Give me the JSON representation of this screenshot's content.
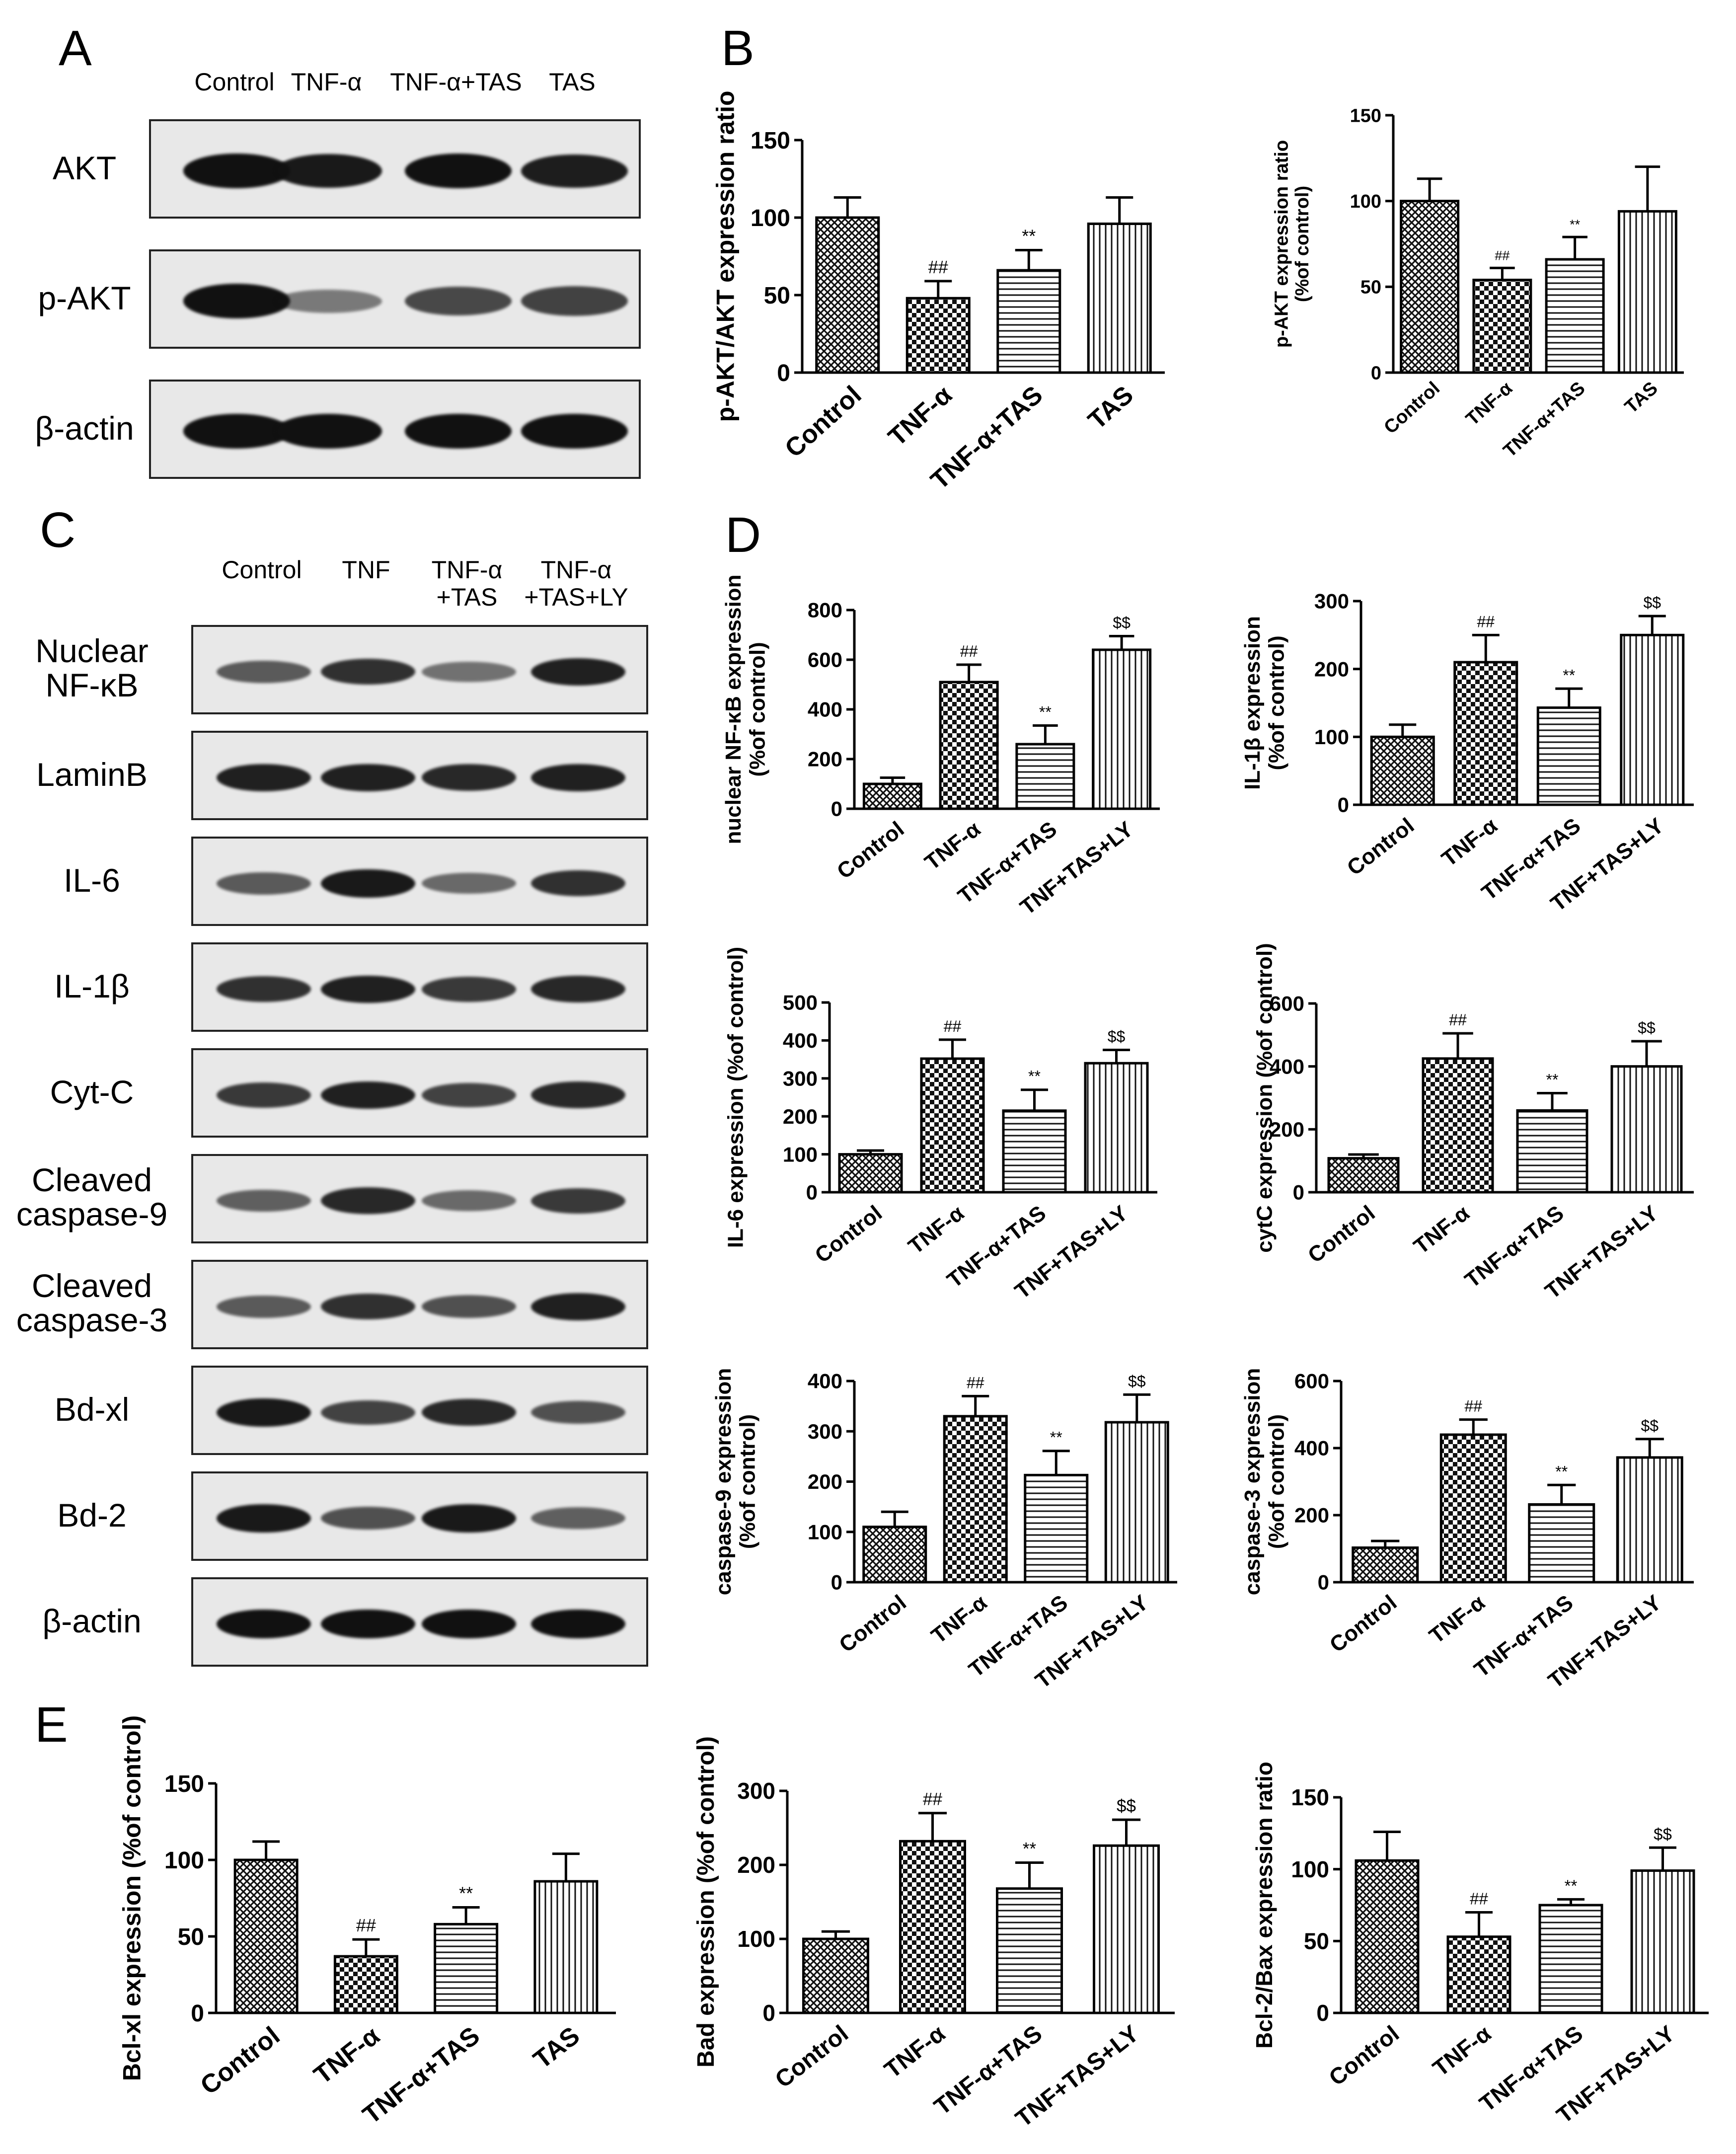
{
  "panels": {
    "A": {
      "letter": "A",
      "lanes": [
        "Control",
        "TNF-α",
        "TNF-α+TAS",
        "TAS"
      ],
      "blots": [
        {
          "label": "AKT",
          "intensity": [
            1.0,
            0.95,
            1.0,
            0.92
          ]
        },
        {
          "label": "p-AKT",
          "intensity": [
            1.0,
            0.35,
            0.65,
            0.7
          ]
        },
        {
          "label": "β-actin",
          "intensity": [
            1.0,
            1.0,
            1.0,
            1.0
          ]
        }
      ]
    },
    "B": {
      "letter": "B"
    },
    "C": {
      "letter": "C",
      "lanes": [
        "Control",
        "TNF",
        "TNF-α\n+TAS",
        "TNF-α\n+TAS+LY"
      ],
      "blots": [
        {
          "label": "Nuclear\nNF-κB",
          "intensity": [
            0.55,
            0.8,
            0.4,
            0.9
          ]
        },
        {
          "label": "LaminB",
          "intensity": [
            0.9,
            0.9,
            0.85,
            0.9
          ]
        },
        {
          "label": "IL-6",
          "intensity": [
            0.55,
            0.95,
            0.45,
            0.8
          ]
        },
        {
          "label": "IL-1β",
          "intensity": [
            0.8,
            0.9,
            0.75,
            0.85
          ]
        },
        {
          "label": "Cyt-C",
          "intensity": [
            0.75,
            0.9,
            0.7,
            0.85
          ]
        },
        {
          "label": "Cleaved\ncaspase-9",
          "intensity": [
            0.5,
            0.85,
            0.45,
            0.75
          ]
        },
        {
          "label": "Cleaved\ncaspase-3",
          "intensity": [
            0.55,
            0.8,
            0.6,
            0.9
          ]
        },
        {
          "label": "Bd-xl",
          "intensity": [
            0.95,
            0.7,
            0.85,
            0.6
          ]
        },
        {
          "label": "Bd-2",
          "intensity": [
            0.95,
            0.6,
            0.95,
            0.5
          ]
        },
        {
          "label": "β-actin",
          "intensity": [
            1.0,
            1.0,
            1.0,
            1.0
          ]
        }
      ]
    },
    "D": {
      "letter": "D"
    },
    "E": {
      "letter": "E"
    }
  },
  "chart_data": [
    {
      "id": "B1",
      "type": "bar",
      "categories": [
        "Control",
        "TNF-α",
        "TNF-α+TAS",
        "TAS"
      ],
      "values": [
        100,
        48,
        66,
        96
      ],
      "errors": [
        13,
        11,
        13,
        17
      ],
      "annotations": [
        "",
        "##",
        "**",
        ""
      ],
      "ylabel": "p-AKT/AKT expression ratio",
      "ylim": [
        0,
        150
      ],
      "ticks": [
        0,
        50,
        100,
        150
      ]
    },
    {
      "id": "B2",
      "type": "bar",
      "categories": [
        "Control",
        "TNF-α",
        "TNF-α+TAS",
        "TAS"
      ],
      "values": [
        100,
        54,
        66,
        94
      ],
      "errors": [
        13,
        7,
        13,
        26
      ],
      "annotations": [
        "",
        "##",
        "**",
        ""
      ],
      "ylabel": "p-AKT expression ratio\n(%of control)",
      "ylim": [
        0,
        150
      ],
      "ticks": [
        0,
        50,
        100,
        150
      ]
    },
    {
      "id": "D1",
      "type": "bar",
      "categories": [
        "Control",
        "TNF-α",
        "TNF-α+TAS",
        "TNF+TAS+LY"
      ],
      "values": [
        100,
        510,
        260,
        640
      ],
      "errors": [
        25,
        70,
        75,
        55
      ],
      "annotations": [
        "",
        "##",
        "**",
        "$$"
      ],
      "ylabel": "nuclear NF-κB expression\n(%of control)",
      "ylim": [
        0,
        800
      ],
      "ticks": [
        0,
        200,
        400,
        600,
        800
      ]
    },
    {
      "id": "D2",
      "type": "bar",
      "categories": [
        "Control",
        "TNF-α",
        "TNF-α+TAS",
        "TNF+TAS+LY"
      ],
      "values": [
        100,
        210,
        143,
        250
      ],
      "errors": [
        18,
        40,
        28,
        28
      ],
      "annotations": [
        "",
        "##",
        "**",
        "$$"
      ],
      "ylabel": "IL-1β expression\n(%of control)",
      "ylim": [
        0,
        300
      ],
      "ticks": [
        0,
        100,
        200,
        300
      ]
    },
    {
      "id": "D3",
      "type": "bar",
      "categories": [
        "Control",
        "TNF-α",
        "TNF-α+TAS",
        "TNF+TAS+LY"
      ],
      "values": [
        100,
        352,
        215,
        340
      ],
      "errors": [
        10,
        50,
        55,
        35
      ],
      "annotations": [
        "",
        "##",
        "**",
        "$$"
      ],
      "ylabel": "IL-6 expression (%of control)",
      "ylim": [
        0,
        500
      ],
      "ticks": [
        0,
        100,
        200,
        300,
        400,
        500
      ]
    },
    {
      "id": "D4",
      "type": "bar",
      "categories": [
        "Control",
        "TNF-α",
        "TNF-α+TAS",
        "TNF+TAS+LY"
      ],
      "values": [
        108,
        425,
        260,
        400
      ],
      "errors": [
        12,
        80,
        55,
        80
      ],
      "annotations": [
        "",
        "##",
        "**",
        "$$"
      ],
      "ylabel": "cytC expression (%of control)",
      "ylim": [
        0,
        600
      ],
      "ticks": [
        0,
        200,
        400,
        600
      ]
    },
    {
      "id": "D5",
      "type": "bar",
      "categories": [
        "Control",
        "TNF-α",
        "TNF-α+TAS",
        "TNF+TAS+LY"
      ],
      "values": [
        110,
        330,
        213,
        318
      ],
      "errors": [
        30,
        40,
        48,
        55
      ],
      "annotations": [
        "",
        "##",
        "**",
        "$$"
      ],
      "ylabel": "caspase-9 expression\n(%of control)",
      "ylim": [
        0,
        400
      ],
      "ticks": [
        0,
        100,
        200,
        300,
        400
      ]
    },
    {
      "id": "D6",
      "type": "bar",
      "categories": [
        "Control",
        "TNF-α",
        "TNF-α+TAS",
        "TNF+TAS+LY"
      ],
      "values": [
        103,
        440,
        232,
        372
      ],
      "errors": [
        20,
        45,
        58,
        55
      ],
      "annotations": [
        "",
        "##",
        "**",
        "$$"
      ],
      "ylabel": "caspase-3 expression\n(%of control)",
      "ylim": [
        0,
        600
      ],
      "ticks": [
        0,
        200,
        400,
        600
      ]
    },
    {
      "id": "E1",
      "type": "bar",
      "categories": [
        "Control",
        "TNF-α",
        "TNF-α+TAS",
        "TAS"
      ],
      "values": [
        100,
        37,
        58,
        86
      ],
      "errors": [
        12,
        11,
        11,
        18
      ],
      "annotations": [
        "",
        "##",
        "**",
        ""
      ],
      "ylabel": "Bcl-xl expression (%of control)",
      "ylim": [
        0,
        150
      ],
      "ticks": [
        0,
        50,
        100,
        150
      ]
    },
    {
      "id": "E2",
      "type": "bar",
      "categories": [
        "Control",
        "TNF-α",
        "TNF-α+TAS",
        "TNF+TAS+LY"
      ],
      "values": [
        100,
        232,
        168,
        226
      ],
      "errors": [
        10,
        38,
        35,
        35
      ],
      "annotations": [
        "",
        "##",
        "**",
        "$$"
      ],
      "ylabel": "Bad expression (%of control)",
      "ylim": [
        0,
        300
      ],
      "ticks": [
        0,
        100,
        200,
        300
      ]
    },
    {
      "id": "E3",
      "type": "bar",
      "categories": [
        "Control",
        "TNF-α",
        "TNF-α+TAS",
        "TNF+TAS+LY"
      ],
      "values": [
        106,
        53,
        75,
        99
      ],
      "errors": [
        20,
        17,
        4,
        16
      ],
      "annotations": [
        "",
        "##",
        "**",
        "$$"
      ],
      "ylabel": "Bcl-2/Bax expression ratio",
      "ylim": [
        0,
        150
      ],
      "ticks": [
        0,
        50,
        100,
        150
      ]
    }
  ]
}
